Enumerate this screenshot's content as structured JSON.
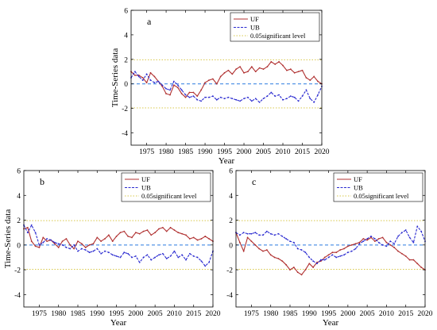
{
  "chart_data": [
    {
      "type": "line",
      "panel_label": "a",
      "xlabel": "Year",
      "ylabel": "Time-Series data",
      "xlim": [
        1971,
        2020
      ],
      "ylim": [
        -5,
        6
      ],
      "xticks": [
        1975,
        1980,
        1985,
        1990,
        1995,
        2000,
        2005,
        2010,
        2015,
        2020
      ],
      "yticks": [
        -4,
        -2,
        0,
        2,
        4,
        6
      ],
      "legend": {
        "placement": "top-right",
        "entries": [
          "UF",
          "UB",
          "0.05significant level"
        ]
      },
      "significance_level": [
        1.96,
        -1.96
      ],
      "x": [
        1971,
        1972,
        1973,
        1974,
        1975,
        1976,
        1977,
        1978,
        1979,
        1980,
        1981,
        1982,
        1983,
        1984,
        1985,
        1986,
        1987,
        1988,
        1989,
        1990,
        1991,
        1992,
        1993,
        1994,
        1995,
        1996,
        1997,
        1998,
        1999,
        2000,
        2001,
        2002,
        2003,
        2004,
        2005,
        2006,
        2007,
        2008,
        2009,
        2010,
        2011,
        2012,
        2013,
        2014,
        2015,
        2016,
        2017,
        2018,
        2019,
        2020
      ],
      "series": [
        {
          "name": "UF",
          "color": "#b03030",
          "values": [
            1.0,
            0.7,
            0.7,
            0.5,
            0.1,
            0.9,
            0.6,
            0.2,
            -0.2,
            -0.8,
            -0.9,
            -0.1,
            -0.3,
            -0.8,
            -1.1,
            -0.7,
            -0.7,
            -1.0,
            -0.5,
            0.1,
            0.3,
            0.4,
            0.0,
            0.6,
            0.9,
            1.1,
            0.8,
            1.2,
            1.4,
            0.9,
            1.0,
            1.4,
            1.0,
            1.3,
            1.2,
            1.4,
            1.8,
            1.6,
            1.8,
            1.5,
            1.1,
            1.2,
            0.9,
            1.0,
            1.1,
            0.5,
            0.3,
            0.6,
            0.2,
            0.0
          ]
        },
        {
          "name": "UB",
          "color": "#2a2ad0",
          "dashed": true,
          "values": [
            0.5,
            1.0,
            0.6,
            0.3,
            0.8,
            0.3,
            0.1,
            0.2,
            -0.1,
            -0.4,
            -0.5,
            0.2,
            -0.1,
            -0.5,
            -0.9,
            -1.1,
            -1.0,
            -1.3,
            -1.4,
            -1.1,
            -1.1,
            -1.0,
            -1.3,
            -1.1,
            -1.2,
            -1.1,
            -1.2,
            -1.3,
            -1.4,
            -1.2,
            -1.1,
            -1.4,
            -1.2,
            -1.5,
            -1.2,
            -1.0,
            -0.7,
            -1.0,
            -0.9,
            -1.3,
            -1.2,
            -1.0,
            -1.1,
            -1.4,
            -1.0,
            -0.5,
            -1.2,
            -1.5,
            -0.9,
            -0.2
          ]
        }
      ]
    },
    {
      "type": "line",
      "panel_label": "b",
      "xlabel": "Year",
      "ylabel": "Time-Series data",
      "xlim": [
        1971,
        2020
      ],
      "ylim": [
        -5,
        6
      ],
      "xticks": [
        1975,
        1980,
        1985,
        1990,
        1995,
        2000,
        2005,
        2010,
        2015,
        2020
      ],
      "yticks": [
        -4,
        -2,
        0,
        2,
        4,
        6
      ],
      "legend": {
        "placement": "top-right",
        "entries": [
          "UF",
          "UB",
          "0.05significant level"
        ]
      },
      "significance_level": [
        1.96,
        -1.96
      ],
      "x": [
        1971,
        1972,
        1973,
        1974,
        1975,
        1976,
        1977,
        1978,
        1979,
        1980,
        1981,
        1982,
        1983,
        1984,
        1985,
        1986,
        1987,
        1988,
        1989,
        1990,
        1991,
        1992,
        1993,
        1994,
        1995,
        1996,
        1997,
        1998,
        1999,
        2000,
        2001,
        2002,
        2003,
        2004,
        2005,
        2006,
        2007,
        2008,
        2009,
        2010,
        2011,
        2012,
        2013,
        2014,
        2015,
        2016,
        2017,
        2018,
        2019,
        2020
      ],
      "series": [
        {
          "name": "UF",
          "color": "#b03030",
          "values": [
            1.3,
            1.4,
            0.3,
            -0.1,
            -0.2,
            0.6,
            0.3,
            0.4,
            0.1,
            -0.2,
            0.3,
            0.5,
            0.0,
            -0.3,
            0.3,
            0.1,
            -0.2,
            0.0,
            0.1,
            0.6,
            0.3,
            0.5,
            0.8,
            0.3,
            0.7,
            1.0,
            1.1,
            0.7,
            0.6,
            1.0,
            0.9,
            1.1,
            1.2,
            0.8,
            1.0,
            1.3,
            1.4,
            1.1,
            1.4,
            1.2,
            1.0,
            0.9,
            0.8,
            0.5,
            0.6,
            0.4,
            0.5,
            0.7,
            0.5,
            0.3
          ]
        },
        {
          "name": "UB",
          "color": "#2a2ad0",
          "dashed": true,
          "values": [
            1.6,
            1.0,
            1.6,
            1.0,
            0.0,
            0.2,
            0.5,
            0.4,
            0.2,
            0.1,
            0.0,
            -0.2,
            -0.3,
            0.0,
            -0.5,
            -0.3,
            -0.4,
            -0.6,
            -0.5,
            -0.3,
            -0.7,
            -0.5,
            -0.6,
            -0.8,
            -0.9,
            -1.0,
            -0.6,
            -0.7,
            -1.0,
            -0.9,
            -1.4,
            -1.0,
            -0.8,
            -1.2,
            -1.0,
            -0.8,
            -0.7,
            -1.1,
            -0.9,
            -0.5,
            -1.0,
            -0.8,
            -1.2,
            -0.7,
            -0.9,
            -1.0,
            -1.3,
            -1.7,
            -1.4,
            -0.5
          ]
        }
      ]
    },
    {
      "type": "line",
      "panel_label": "c",
      "xlabel": "Year",
      "ylabel": "",
      "xlim": [
        1971,
        2020
      ],
      "ylim": [
        -5,
        6
      ],
      "xticks": [
        1975,
        1980,
        1985,
        1990,
        1995,
        2000,
        2005,
        2010,
        2015,
        2020
      ],
      "yticks": [
        -4,
        -2,
        0,
        2,
        4,
        6
      ],
      "legend": {
        "placement": "top-right",
        "entries": [
          "UF",
          "UB",
          "0.05significant level"
        ]
      },
      "significance_level": [
        1.96,
        -1.96
      ],
      "x": [
        1971,
        1972,
        1973,
        1974,
        1975,
        1976,
        1977,
        1978,
        1979,
        1980,
        1981,
        1982,
        1983,
        1984,
        1985,
        1986,
        1987,
        1988,
        1989,
        1990,
        1991,
        1992,
        1993,
        1994,
        1995,
        1996,
        1997,
        1998,
        1999,
        2000,
        2001,
        2002,
        2003,
        2004,
        2005,
        2006,
        2007,
        2008,
        2009,
        2010,
        2011,
        2012,
        2013,
        2014,
        2015,
        2016,
        2017,
        2018,
        2019,
        2020
      ],
      "series": [
        {
          "name": "UF",
          "color": "#b03030",
          "values": [
            1.0,
            0.2,
            -0.5,
            0.6,
            0.3,
            0.0,
            -0.3,
            -0.5,
            -0.4,
            -0.8,
            -1.0,
            -1.1,
            -1.3,
            -1.6,
            -2.0,
            -1.8,
            -2.2,
            -2.4,
            -2.0,
            -1.5,
            -1.8,
            -1.4,
            -1.3,
            -1.0,
            -0.8,
            -0.6,
            -0.6,
            -0.4,
            -0.3,
            -0.1,
            0.0,
            0.1,
            0.2,
            0.5,
            0.4,
            0.6,
            0.3,
            0.5,
            0.6,
            0.2,
            0.0,
            -0.2,
            -0.5,
            -0.7,
            -0.9,
            -1.2,
            -1.2,
            -1.5,
            -1.8,
            -2.0
          ]
        },
        {
          "name": "UB",
          "color": "#2a2ad0",
          "dashed": true,
          "values": [
            1.0,
            0.8,
            1.0,
            0.9,
            0.9,
            1.0,
            0.8,
            0.8,
            1.1,
            0.9,
            0.8,
            0.9,
            0.7,
            0.5,
            0.3,
            0.2,
            -0.3,
            -0.4,
            -0.6,
            -1.0,
            -1.3,
            -1.5,
            -1.2,
            -1.2,
            -1.0,
            -0.8,
            -1.0,
            -0.9,
            -0.8,
            -0.6,
            -0.5,
            -0.3,
            0.1,
            0.3,
            0.5,
            0.7,
            0.5,
            0.2,
            0.0,
            -0.1,
            0.3,
            0.1,
            0.7,
            1.0,
            1.2,
            0.6,
            0.2,
            1.5,
            1.1,
            0.3
          ]
        }
      ]
    }
  ]
}
